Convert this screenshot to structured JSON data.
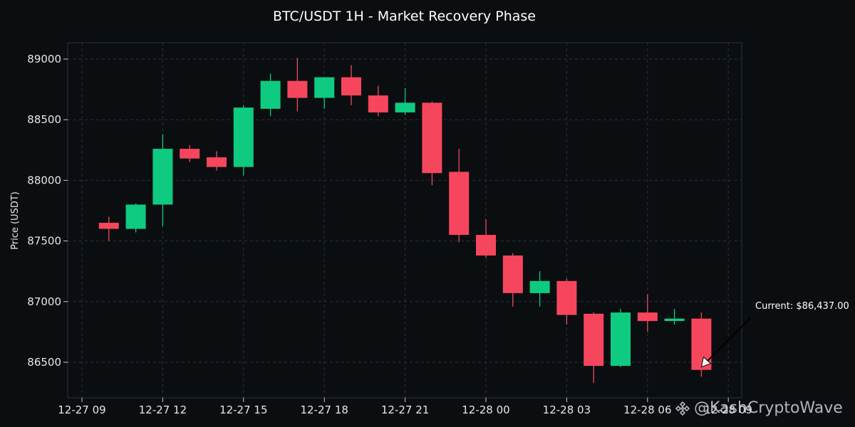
{
  "chart_data": {
    "type": "candlestick",
    "title": "BTC/USDT 1H - Market Recovery Phase",
    "xlabel": "",
    "ylabel": "Price (USDT)",
    "ylim": [
      86270,
      89140
    ],
    "grid": true,
    "x_ticks": [
      "12-27 09",
      "12-27 12",
      "12-27 15",
      "12-27 18",
      "12-27 21",
      "12-28 00",
      "12-28 03",
      "12-28 06",
      "12-28 09"
    ],
    "y_ticks": [
      86500,
      87000,
      87500,
      88000,
      88500,
      89000
    ],
    "candles": [
      {
        "time": "12-27 10",
        "open": 87650,
        "high": 87700,
        "low": 87500,
        "close": 87600
      },
      {
        "time": "12-27 11",
        "open": 87600,
        "high": 87810,
        "low": 87570,
        "close": 87800
      },
      {
        "time": "12-27 12",
        "open": 87800,
        "high": 88380,
        "low": 87620,
        "close": 88260
      },
      {
        "time": "12-27 13",
        "open": 88260,
        "high": 88290,
        "low": 88150,
        "close": 88180
      },
      {
        "time": "12-27 14",
        "open": 88190,
        "high": 88240,
        "low": 88080,
        "close": 88110
      },
      {
        "time": "12-27 15",
        "open": 88110,
        "high": 88620,
        "low": 88040,
        "close": 88600
      },
      {
        "time": "12-27 16",
        "open": 88590,
        "high": 88880,
        "low": 88530,
        "close": 88820
      },
      {
        "time": "12-27 17",
        "open": 88820,
        "high": 89010,
        "low": 88570,
        "close": 88680
      },
      {
        "time": "12-27 18",
        "open": 88680,
        "high": 88850,
        "low": 88590,
        "close": 88850
      },
      {
        "time": "12-27 19",
        "open": 88850,
        "high": 88950,
        "low": 88620,
        "close": 88700
      },
      {
        "time": "12-27 20",
        "open": 88700,
        "high": 88780,
        "low": 88530,
        "close": 88560
      },
      {
        "time": "12-27 21",
        "open": 88560,
        "high": 88760,
        "low": 88540,
        "close": 88640
      },
      {
        "time": "12-27 22",
        "open": 88640,
        "high": 88650,
        "low": 87960,
        "close": 88060
      },
      {
        "time": "12-27 23",
        "open": 88070,
        "high": 88260,
        "low": 87490,
        "close": 87550
      },
      {
        "time": "12-28 00",
        "open": 87550,
        "high": 87680,
        "low": 87360,
        "close": 87380
      },
      {
        "time": "12-28 01",
        "open": 87380,
        "high": 87400,
        "low": 86960,
        "close": 87070
      },
      {
        "time": "12-28 02",
        "open": 87070,
        "high": 87250,
        "low": 86960,
        "close": 87170
      },
      {
        "time": "12-28 03",
        "open": 87170,
        "high": 87190,
        "low": 86810,
        "close": 86890
      },
      {
        "time": "12-28 04",
        "open": 86900,
        "high": 86910,
        "low": 86330,
        "close": 86470
      },
      {
        "time": "12-28 05",
        "open": 86470,
        "high": 86940,
        "low": 86460,
        "close": 86910
      },
      {
        "time": "12-28 06",
        "open": 86910,
        "high": 87060,
        "low": 86750,
        "close": 86840
      },
      {
        "time": "12-28 07",
        "open": 86840,
        "high": 86940,
        "low": 86810,
        "close": 86860
      },
      {
        "time": "12-28 08",
        "open": 86860,
        "high": 86910,
        "low": 86380,
        "close": 86437
      }
    ],
    "annotation": {
      "text": "Current: $86,437.00",
      "value": 86437
    },
    "colors": {
      "up": "#0ecb81",
      "down": "#f6465d",
      "background": "#0b0e11",
      "grid": "#2b3139"
    }
  },
  "watermark": {
    "text": "@KashCryptoWave",
    "icon": "binance-diamond-icon"
  }
}
